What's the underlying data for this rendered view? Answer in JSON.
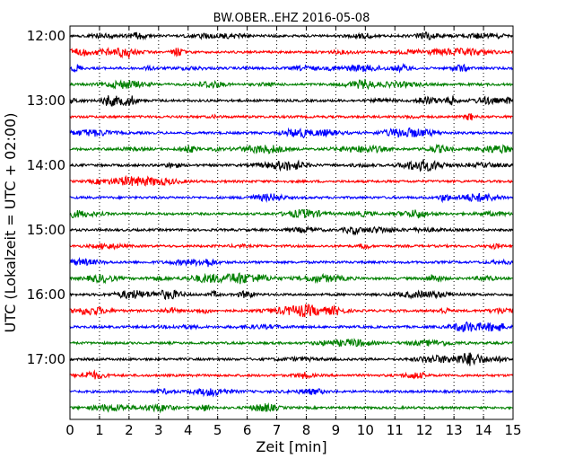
{
  "chart_data": {
    "type": "line",
    "title": "BW.OBER..EHZ 2016-05-08",
    "xlabel": "Zeit  [min]",
    "ylabel": "UTC (Lokalzeit = UTC + 02:00)",
    "xlim": [
      0,
      15
    ],
    "x_ticks": [
      0,
      1,
      2,
      3,
      4,
      5,
      6,
      7,
      8,
      9,
      10,
      11,
      12,
      13,
      14,
      15
    ],
    "y_tick_labels": [
      "12:00",
      "13:00",
      "14:00",
      "15:00",
      "16:00",
      "17:00"
    ],
    "trace_interval_min": 15,
    "start_time": "12:00",
    "grid": "vertical dotted",
    "color_cycle": [
      "#000000",
      "#ff0000",
      "#0000ff",
      "#008000"
    ],
    "traces": [
      {
        "start": "12:00",
        "color": "#000000"
      },
      {
        "start": "12:15",
        "color": "#ff0000"
      },
      {
        "start": "12:30",
        "color": "#0000ff"
      },
      {
        "start": "12:45",
        "color": "#008000"
      },
      {
        "start": "13:00",
        "color": "#000000"
      },
      {
        "start": "13:15",
        "color": "#ff0000"
      },
      {
        "start": "13:30",
        "color": "#0000ff"
      },
      {
        "start": "13:45",
        "color": "#008000"
      },
      {
        "start": "14:00",
        "color": "#000000"
      },
      {
        "start": "14:15",
        "color": "#ff0000"
      },
      {
        "start": "14:30",
        "color": "#0000ff"
      },
      {
        "start": "14:45",
        "color": "#008000"
      },
      {
        "start": "15:00",
        "color": "#000000"
      },
      {
        "start": "15:15",
        "color": "#ff0000"
      },
      {
        "start": "15:30",
        "color": "#0000ff"
      },
      {
        "start": "15:45",
        "color": "#008000"
      },
      {
        "start": "16:00",
        "color": "#000000"
      },
      {
        "start": "16:15",
        "color": "#ff0000"
      },
      {
        "start": "16:30",
        "color": "#0000ff"
      },
      {
        "start": "16:45",
        "color": "#008000"
      },
      {
        "start": "17:00",
        "color": "#000000"
      },
      {
        "start": "17:15",
        "color": "#ff0000"
      },
      {
        "start": "17:30",
        "color": "#0000ff"
      },
      {
        "start": "17:45",
        "color": "#008000"
      }
    ]
  }
}
